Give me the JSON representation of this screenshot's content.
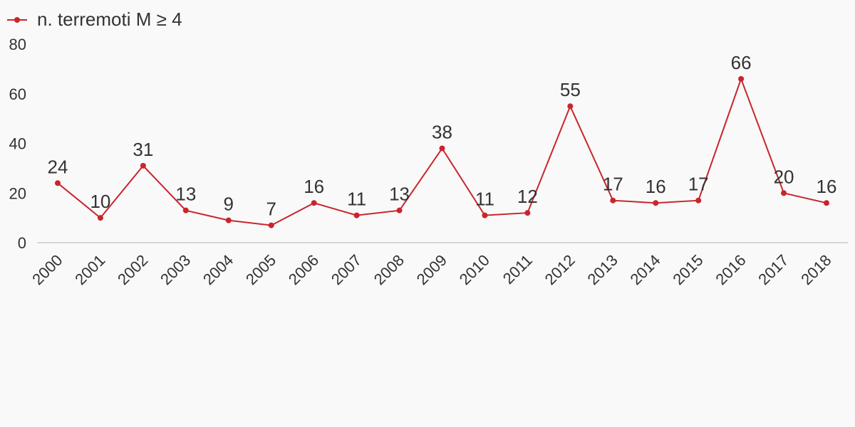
{
  "chart_data": {
    "type": "line",
    "title": "",
    "xlabel": "",
    "ylabel": "",
    "categories": [
      "2000",
      "2001",
      "2002",
      "2003",
      "2004",
      "2005",
      "2006",
      "2007",
      "2008",
      "2009",
      "2010",
      "2011",
      "2012",
      "2013",
      "2014",
      "2015",
      "2016",
      "2017",
      "2018"
    ],
    "series": [
      {
        "name": "n. terremoti M ≥ 4",
        "values": [
          24,
          10,
          31,
          13,
          9,
          7,
          16,
          11,
          13,
          38,
          11,
          12,
          55,
          17,
          16,
          17,
          66,
          20,
          16
        ]
      }
    ],
    "ylim": [
      0,
      80
    ],
    "yticks": [
      0,
      20,
      40,
      60,
      80
    ],
    "grid": false,
    "legend": "top-left",
    "colors": {
      "series": "#c9252c",
      "axis": "#d6d6d6",
      "text": "#333333",
      "background": "#f9f9f9"
    }
  }
}
